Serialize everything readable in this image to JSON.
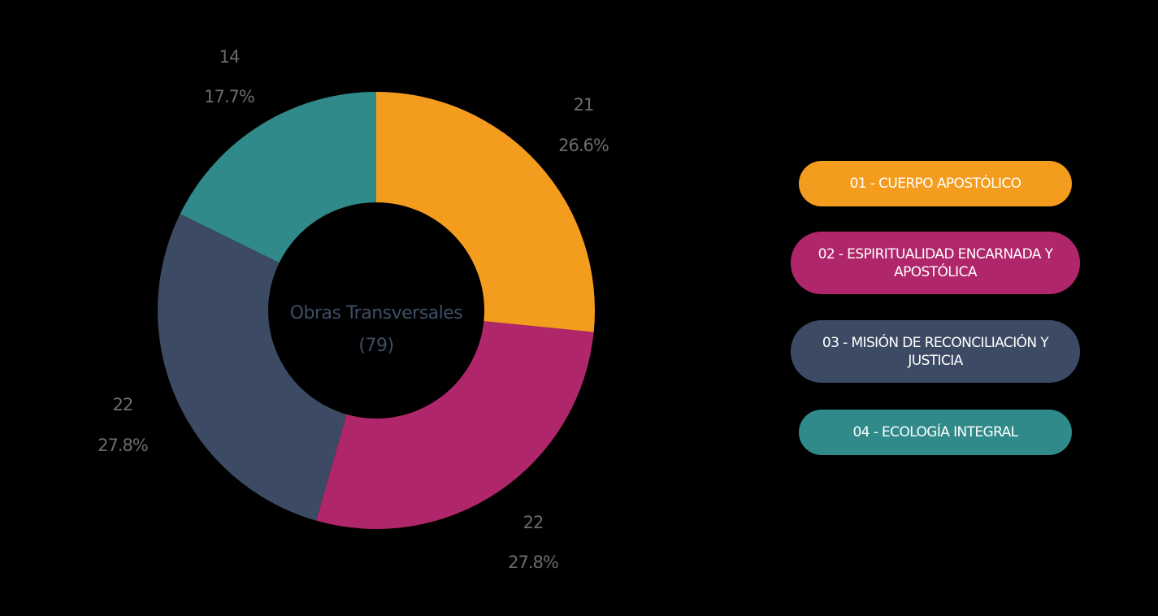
{
  "chart_data": {
    "type": "pie",
    "variant": "donut",
    "center_label": {
      "title": "Obras Transversales",
      "total": "(79)"
    },
    "slices": [
      {
        "label": "01 - CUERPO APOSTÓLICO",
        "value": 21,
        "percent": "26.6%",
        "value_text": "21",
        "color": "#f39c1e"
      },
      {
        "label": "02 - ESPIRITUALIDAD ENCARNADA Y APOSTÓLICA",
        "value": 22,
        "percent": "27.8%",
        "value_text": "22",
        "color": "#b0266a"
      },
      {
        "label": "03 - MISIÓN DE RECONCILIACIÓN Y JUSTICIA",
        "value": 22,
        "percent": "27.8%",
        "value_text": "22",
        "color": "#3c4b63"
      },
      {
        "label": "04 - ECOLOGÍA INTEGRAL",
        "value": 14,
        "percent": "17.7%",
        "value_text": "14",
        "color": "#308a89"
      }
    ],
    "legend_position": "right",
    "start_angle_deg": 0,
    "direction": "clockwise"
  }
}
